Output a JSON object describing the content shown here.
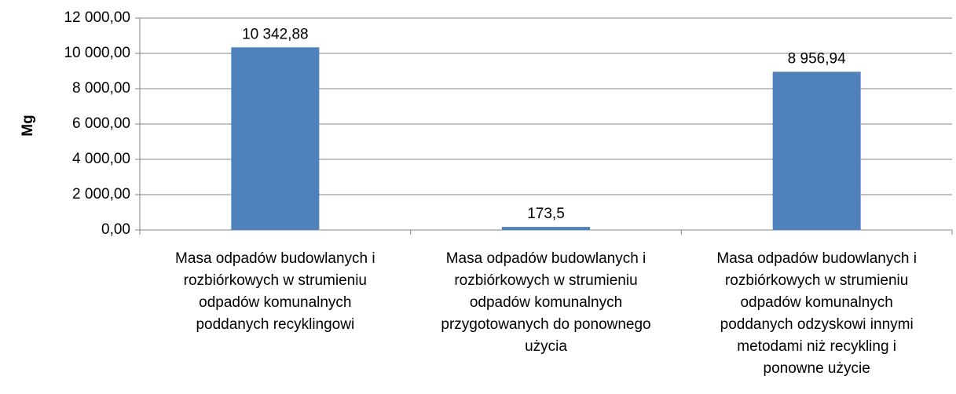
{
  "chart_data": {
    "type": "bar",
    "y_label": "Mg",
    "categories": [
      [
        "Masa odpadów budowlanych i",
        "rozbiórkowych w strumieniu",
        "odpadów komunalnych",
        "poddanych recyklingowi"
      ],
      [
        "Masa odpadów budowlanych i",
        "rozbiórkowych w strumieniu",
        "odpadów komunalnych",
        "przygotowanych do ponownego",
        "użycia"
      ],
      [
        "Masa odpadów budowlanych i",
        "rozbiórkowych w strumieniu",
        "odpadów komunalnych",
        "poddanych odzyskowi innymi",
        "metodami niż recykling i",
        "ponowne użycie"
      ]
    ],
    "values": [
      10342.88,
      173.5,
      8956.94
    ],
    "value_labels": [
      "10 342,88",
      "173,5",
      "8 956,94"
    ],
    "color": "#4f81bd",
    "ylim": [
      0,
      12000
    ],
    "yticks": [
      {
        "value": 0,
        "label": "0,00"
      },
      {
        "value": 2000,
        "label": "2 000,00"
      },
      {
        "value": 4000,
        "label": "4 000,00"
      },
      {
        "value": 6000,
        "label": "6 000,00"
      },
      {
        "value": 8000,
        "label": "8 000,00"
      },
      {
        "value": 10000,
        "label": "10 000,00"
      },
      {
        "value": 12000,
        "label": "12 000,00"
      }
    ],
    "grid": true
  }
}
